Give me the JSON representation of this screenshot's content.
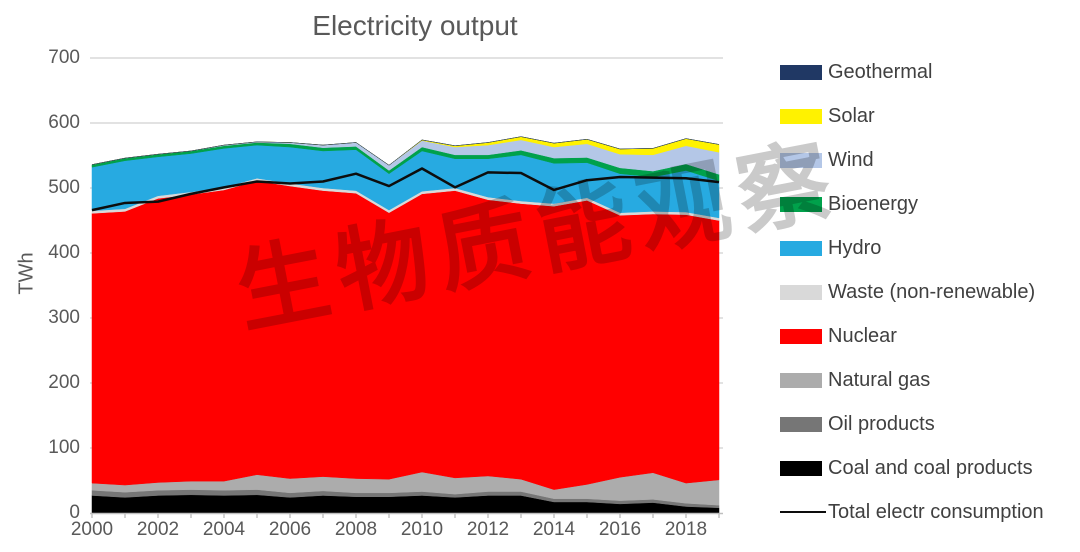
{
  "chart_data": {
    "type": "area",
    "stacked": true,
    "title": "Electricity output",
    "ylabel": "TWh",
    "ylim": [
      0,
      700
    ],
    "ytick_interval": 100,
    "grid": true,
    "legend_position": "right",
    "x": [
      2000,
      2001,
      2002,
      2003,
      2004,
      2005,
      2006,
      2007,
      2008,
      2009,
      2010,
      2011,
      2012,
      2013,
      2014,
      2015,
      2016,
      2017,
      2018,
      2019
    ],
    "xtick_labels": [
      "2000",
      "2002",
      "2004",
      "2006",
      "2008",
      "2010",
      "2012",
      "2014",
      "2016",
      "2018"
    ],
    "series": [
      {
        "name": "Coal and coal products",
        "color": "#000000",
        "values": [
          27,
          24,
          27,
          28,
          27,
          28,
          24,
          27,
          25,
          25,
          27,
          24,
          27,
          27,
          17,
          17,
          14,
          16,
          10,
          8
        ]
      },
      {
        "name": "Oil products",
        "color": "#767676",
        "values": [
          8,
          8,
          8,
          8,
          8,
          8,
          7,
          7,
          6,
          6,
          6,
          5,
          6,
          6,
          5,
          5,
          5,
          5,
          5,
          4
        ]
      },
      {
        "name": "Natural gas",
        "color": "#ACACAC",
        "values": [
          11,
          11,
          12,
          13,
          14,
          23,
          22,
          22,
          22,
          21,
          30,
          25,
          24,
          19,
          14,
          22,
          36,
          41,
          31,
          39
        ]
      },
      {
        "name": "Nuclear",
        "color": "#FF0000",
        "values": [
          415,
          421,
          437,
          441,
          448,
          452,
          450,
          440,
          439,
          410,
          428,
          442,
          425,
          424,
          436,
          437,
          403,
          398,
          413,
          399
        ]
      },
      {
        "name": "Waste (non-renewable)",
        "color": "#D9D9D9",
        "values": [
          4,
          4,
          4,
          4,
          4,
          4,
          4,
          4,
          4,
          4,
          4,
          4,
          4,
          4,
          4,
          4,
          4,
          4,
          4,
          4
        ]
      },
      {
        "name": "Hydro",
        "color": "#27AAE1",
        "values": [
          67,
          74,
          60,
          59,
          60,
          51,
          56,
          57,
          63,
          56,
          62,
          45,
          59,
          71,
          62,
          54,
          60,
          53,
          64,
          57
        ]
      },
      {
        "name": "Bioenergy",
        "color": "#00A14B",
        "values": [
          4,
          4,
          4,
          4,
          4,
          4,
          5,
          5,
          5,
          5,
          6,
          6,
          6,
          7,
          8,
          8,
          9,
          9,
          10,
          10
        ]
      },
      {
        "name": "Wind",
        "color": "#B4C7E7",
        "values": [
          0,
          0,
          0,
          0,
          1,
          1,
          2,
          4,
          6,
          8,
          10,
          12,
          15,
          16,
          17,
          21,
          21,
          25,
          28,
          34
        ]
      },
      {
        "name": "Solar",
        "color": "#FFF200",
        "values": [
          0,
          0,
          0,
          0,
          0,
          0,
          0,
          0,
          0,
          0,
          1,
          2,
          4,
          5,
          6,
          7,
          8,
          10,
          11,
          12
        ]
      },
      {
        "name": "Geothermal",
        "color": "#203864",
        "values": [
          0,
          0,
          0,
          0,
          0,
          0,
          0,
          0,
          0,
          0,
          0,
          0,
          0,
          0,
          0,
          0,
          0,
          0,
          0,
          0
        ]
      }
    ],
    "line_series": {
      "name": "Total electr consumption",
      "color": "#0d0d0d",
      "values": [
        466,
        477,
        479,
        491,
        501,
        510,
        507,
        510,
        522,
        503,
        530,
        501,
        524,
        523,
        497,
        512,
        517,
        516,
        515,
        509
      ]
    },
    "colors": {
      "gridline": "#D9D9D9",
      "axis": "#BFBFBF",
      "title_text": "#595959",
      "axis_text": "#595959",
      "legend_text": "#404040",
      "background": "#FFFFFF"
    },
    "watermark": "生物质能观察"
  }
}
